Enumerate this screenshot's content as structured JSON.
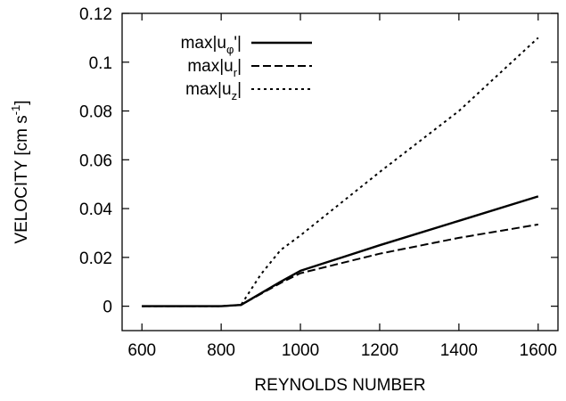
{
  "chart_data": {
    "type": "line",
    "title": "",
    "xlabel": "REYNOLDS NUMBER",
    "ylabel": "VELOCITY [cm s",
    "ylabel_sup": "-1",
    "ylabel_close": "]",
    "xlim": [
      550,
      1650
    ],
    "ylim": [
      -0.01,
      0.12
    ],
    "xticks": [
      600,
      800,
      1000,
      1200,
      1400,
      1600
    ],
    "yticks": [
      0,
      0.02,
      0.04,
      0.06,
      0.08,
      0.1,
      0.12
    ],
    "ytick_labels": [
      "0",
      "0.02",
      "0.04",
      "0.06",
      "0.08",
      "0.1",
      "0.12"
    ],
    "grid": false,
    "legend_position": "top-left",
    "series": [
      {
        "label_main": "max|u",
        "label_sub": "φ",
        "label_tail": "'|",
        "style": "solid",
        "x": [
          600,
          700,
          800,
          850,
          950,
          1000,
          1200,
          1400,
          1600
        ],
        "y": [
          0,
          0,
          0,
          0.0005,
          0.01,
          0.0145,
          0.025,
          0.035,
          0.045
        ]
      },
      {
        "label_main": "max|u",
        "label_sub": "r",
        "label_tail": "|",
        "style": "dashed",
        "x": [
          600,
          700,
          800,
          850,
          950,
          1000,
          1200,
          1400,
          1600
        ],
        "y": [
          0,
          0,
          0,
          0.0005,
          0.0095,
          0.0135,
          0.0215,
          0.028,
          0.0335
        ]
      },
      {
        "label_main": "max|u",
        "label_sub": "z",
        "label_tail": "|",
        "style": "dotted",
        "x": [
          600,
          700,
          800,
          850,
          900,
          950,
          1000,
          1200,
          1400,
          1600
        ],
        "y": [
          0,
          0,
          0,
          0.0005,
          0.013,
          0.023,
          0.029,
          0.055,
          0.08,
          0.11
        ]
      }
    ]
  }
}
